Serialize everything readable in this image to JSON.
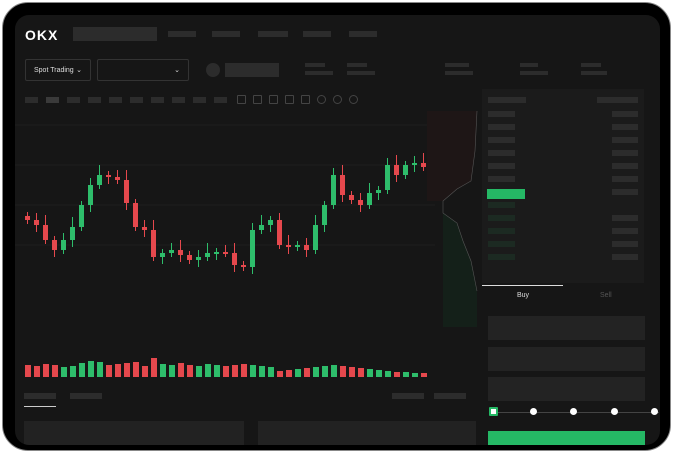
{
  "header": {
    "logo": "OKX"
  },
  "toolbar": {
    "spot_trading_label": "Spot Trading"
  },
  "icons": {
    "chevron": "chevron-down-icon"
  },
  "colors": {
    "up": "#2ebd6b",
    "down": "#e5484d",
    "accent": "#25b865",
    "background": "#161616"
  },
  "trade": {
    "buy_tab": "Buy",
    "sell_tab": "Sell",
    "leverage_steps": 5,
    "leverage_selected": 0
  },
  "chart_data": {
    "type": "candlestick",
    "close": [
      95,
      90,
      75,
      65,
      75,
      88,
      110,
      130,
      140,
      138,
      135,
      112,
      88,
      85,
      58,
      62,
      65,
      60,
      55,
      58,
      62,
      63,
      62,
      50,
      48,
      85,
      90,
      95,
      70,
      68,
      70,
      65,
      90,
      110,
      140,
      120,
      115,
      110,
      122,
      125,
      150,
      140,
      150,
      152,
      148
    ],
    "volume": [
      12,
      11,
      13,
      12,
      10,
      11,
      14,
      16,
      15,
      12,
      13,
      14,
      15,
      11,
      19,
      13,
      12,
      14,
      12,
      11,
      13,
      12,
      11,
      12,
      13,
      12,
      11,
      10,
      6,
      7,
      8,
      9,
      10,
      11,
      12,
      11,
      10,
      9,
      8,
      7,
      6,
      5,
      5,
      4,
      4
    ]
  }
}
